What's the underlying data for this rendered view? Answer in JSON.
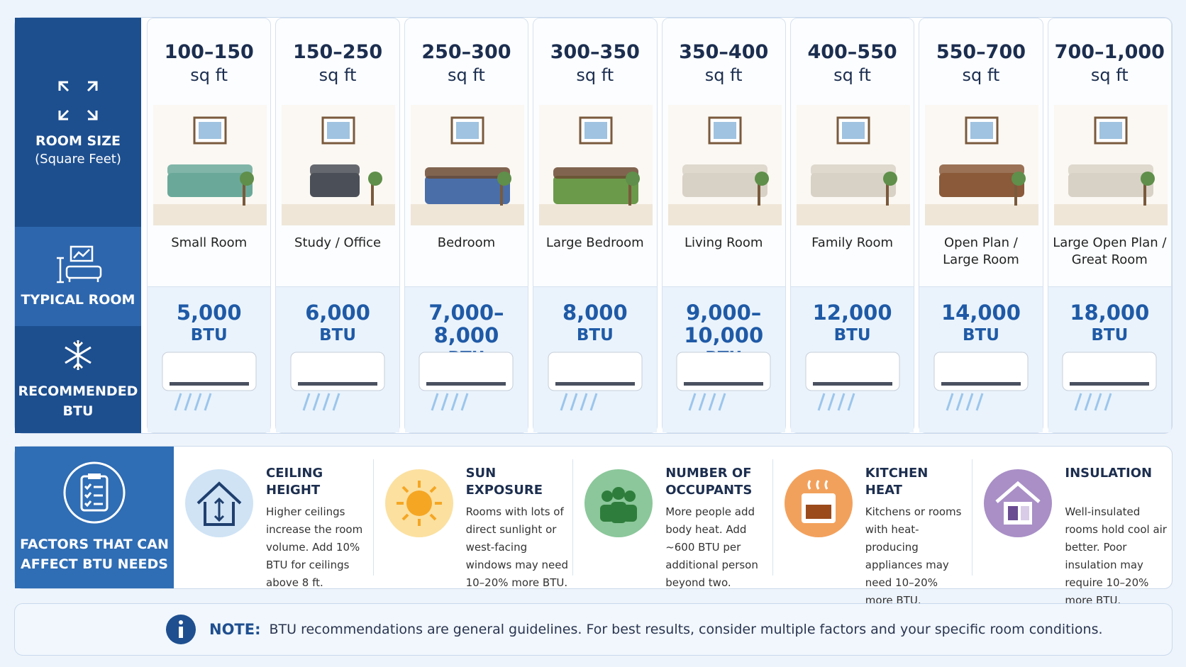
{
  "sidebar": {
    "room_size": "ROOM SIZE",
    "room_size_sub": "(Square Feet)",
    "typical_room": "TYPICAL ROOM",
    "recommended": [
      "RECOMMENDED",
      "BTU"
    ]
  },
  "columns": [
    {
      "size": "100–150",
      "unit": "sq ft",
      "room": [
        "Small Room"
      ],
      "btu": "5,000",
      "btu_unit": "BTU"
    },
    {
      "size": "150–250",
      "unit": "sq ft",
      "room": [
        "Study / Office"
      ],
      "btu": "6,000",
      "btu_unit": "BTU"
    },
    {
      "size": "250–300",
      "unit": "sq ft",
      "room": [
        "Bedroom"
      ],
      "btu": "7,000–8,000",
      "btu_unit": "BTU"
    },
    {
      "size": "300–350",
      "unit": "sq ft",
      "room": [
        "Large Bedroom"
      ],
      "btu": "8,000",
      "btu_unit": "BTU"
    },
    {
      "size": "350–400",
      "unit": "sq ft",
      "room": [
        "Living Room"
      ],
      "btu": "9,000–10,000",
      "btu_unit": "BTU"
    },
    {
      "size": "400–550",
      "unit": "sq ft",
      "room": [
        "Family Room"
      ],
      "btu": "12,000",
      "btu_unit": "BTU"
    },
    {
      "size": "550–700",
      "unit": "sq ft",
      "room": [
        "Open Plan /",
        "Large Room"
      ],
      "btu": "14,000",
      "btu_unit": "BTU"
    },
    {
      "size": "700–1,000",
      "unit": "sq ft",
      "room": [
        "Large Open Plan /",
        "Great Room"
      ],
      "btu": "18,000",
      "btu_unit": "BTU"
    }
  ],
  "factors_title": [
    "FACTORS THAT CAN",
    "AFFECT BTU NEEDS"
  ],
  "factors": [
    {
      "title": "CEILING HEIGHT",
      "text": "Higher ceilings increase the room volume. Add 10% BTU for ceilings above 8 ft."
    },
    {
      "title": "SUN EXPOSURE",
      "text": "Rooms with lots of direct sunlight or west-facing windows may need 10–20% more BTU."
    },
    {
      "title": "NUMBER OF OCCUPANTS",
      "text": "More people add body heat. Add ~600 BTU per additional person beyond two."
    },
    {
      "title": "KITCHEN HEAT",
      "text": "Kitchens or rooms with heat-producing appliances may need 10–20% more BTU."
    },
    {
      "title": "INSULATION",
      "text": "Well-insulated rooms hold cool air better. Poor insulation may require 10–20% more BTU."
    }
  ],
  "note": {
    "label": "NOTE:",
    "text": "BTU recommendations are general guidelines. For best results, consider multiple factors and your specific room conditions."
  }
}
